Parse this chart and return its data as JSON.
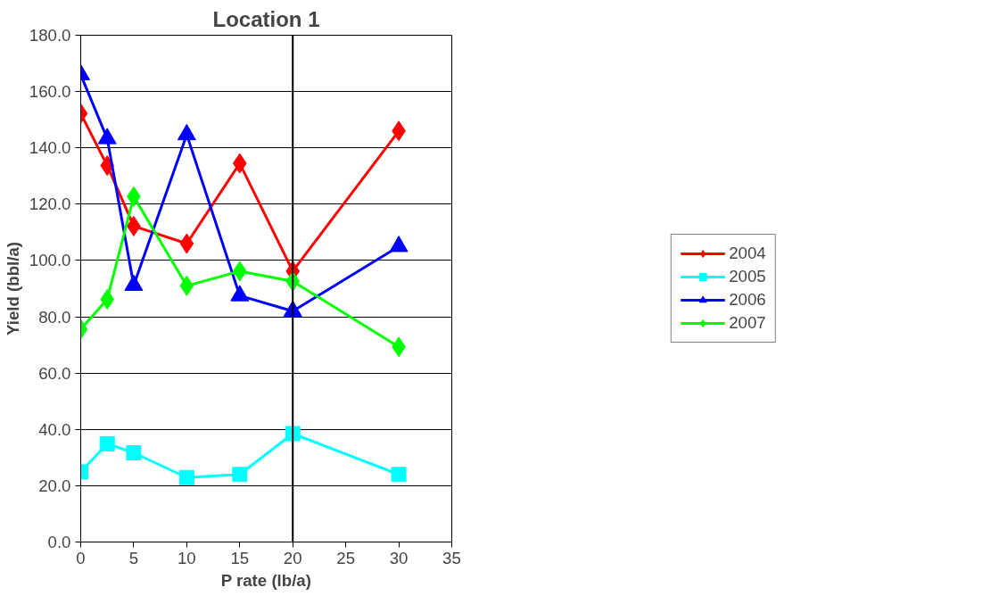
{
  "chart_data": {
    "type": "line",
    "title": "Location 1",
    "xlabel": "P rate (lb/a)",
    "ylabel": "Yield (bbl/a)",
    "x": [
      0,
      2.5,
      5,
      10,
      15,
      20,
      30
    ],
    "series": [
      {
        "name": "2004",
        "color": "#ff0000",
        "marker": "diamond",
        "values": [
          152.2,
          133.7,
          112.2,
          106,
          134.5,
          96.2,
          146
        ]
      },
      {
        "name": "2005",
        "color": "#00ffff",
        "marker": "square",
        "values": [
          24.9,
          34.9,
          31.7,
          22.9,
          24,
          38.5,
          24
        ]
      },
      {
        "name": "2006",
        "color": "#0000ff",
        "marker": "triangle",
        "values": [
          166,
          143.3,
          91.2,
          144.7,
          87.5,
          82,
          105
        ]
      },
      {
        "name": "2007",
        "color": "#00ff00",
        "marker": "diamond",
        "values": [
          75.6,
          86.2,
          122.7,
          91,
          96.2,
          92.6,
          69.3
        ]
      }
    ],
    "xlim": [
      0,
      35
    ],
    "xticks": [
      0,
      5,
      10,
      15,
      20,
      25,
      30,
      35
    ],
    "ylim": [
      0,
      180
    ],
    "yticks": [
      {
        "value": 0,
        "label": "0.0"
      },
      {
        "value": 20,
        "label": "20.0"
      },
      {
        "value": 40,
        "label": "40.0"
      },
      {
        "value": 60,
        "label": "60.0"
      },
      {
        "value": 80,
        "label": "80.0"
      },
      {
        "value": 100,
        "label": "100.0"
      },
      {
        "value": 120,
        "label": "120.0"
      },
      {
        "value": 140,
        "label": "140.0"
      },
      {
        "value": 160,
        "label": "160.0"
      },
      {
        "value": 180,
        "label": "180.0"
      }
    ],
    "ref_lines": [
      {
        "axis": "x",
        "value": 20,
        "color": "#000000"
      }
    ],
    "grid": "y",
    "legend": "right",
    "line_style": "solid"
  }
}
